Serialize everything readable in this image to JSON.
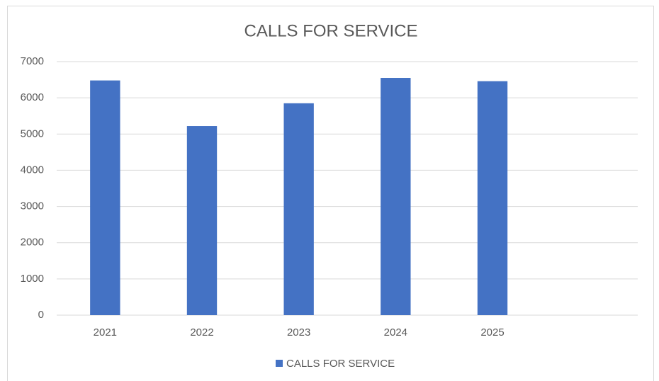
{
  "chart_data": {
    "type": "bar",
    "title": "CALLS FOR SERVICE",
    "categories": [
      "2021",
      "2022",
      "2023",
      "2024",
      "2025",
      null
    ],
    "series": [
      {
        "name": "CALLS FOR SERVICE",
        "color": "#4472c4",
        "values": [
          6480,
          5220,
          5850,
          6550,
          6460,
          null
        ]
      }
    ],
    "ylim": [
      0,
      7000
    ],
    "yticks": [
      0,
      1000,
      2000,
      3000,
      4000,
      5000,
      6000,
      7000
    ],
    "grid": true,
    "legend": "bottom"
  }
}
